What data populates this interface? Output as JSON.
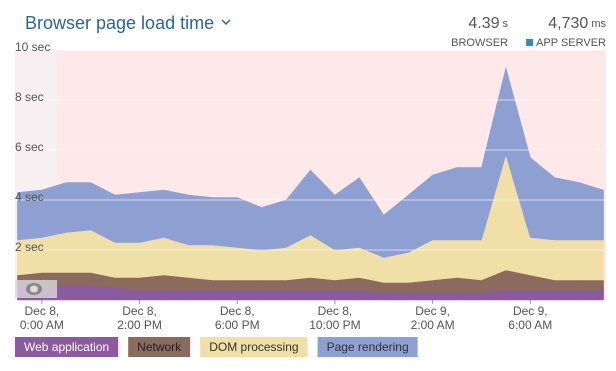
{
  "chart_data": {
    "type": "stacked-area",
    "title": "Browser page load time",
    "summary": [
      {
        "value": "4.39",
        "unit": "s",
        "label": "BROWSER"
      },
      {
        "value": "4,730",
        "unit": "ms",
        "label": "APP SERVER",
        "color": "#2f8fa8"
      }
    ],
    "x": [
      9,
      10,
      11,
      12,
      13,
      14,
      15,
      16,
      17,
      18,
      19,
      20,
      21,
      22,
      23,
      24,
      25,
      26,
      27,
      28,
      29,
      30,
      31,
      32,
      33
    ],
    "series": [
      {
        "name": "Web application",
        "color": "#8c5a9e",
        "values": [
          0.6,
          0.6,
          0.6,
          0.6,
          0.5,
          0.4,
          0.4,
          0.4,
          0.4,
          0.4,
          0.4,
          0.4,
          0.4,
          0.4,
          0.4,
          0.3,
          0.3,
          0.3,
          0.3,
          0.3,
          0.4,
          0.4,
          0.4,
          0.4,
          0.4
        ]
      },
      {
        "name": "Network",
        "color": "#8b6b5e",
        "values": [
          0.4,
          0.5,
          0.5,
          0.5,
          0.4,
          0.5,
          0.6,
          0.5,
          0.4,
          0.4,
          0.4,
          0.4,
          0.5,
          0.4,
          0.5,
          0.4,
          0.4,
          0.5,
          0.6,
          0.5,
          0.8,
          0.6,
          0.4,
          0.4,
          0.4
        ]
      },
      {
        "name": "DOM processing",
        "color": "#f0dfa6",
        "values": [
          1.4,
          1.4,
          1.6,
          1.7,
          1.4,
          1.4,
          1.5,
          1.3,
          1.4,
          1.3,
          1.2,
          1.3,
          1.7,
          1.2,
          1.2,
          1.0,
          1.2,
          1.6,
          1.5,
          1.6,
          4.6,
          1.5,
          1.6,
          1.6,
          1.6
        ]
      },
      {
        "name": "Page rendering",
        "color": "#8e9fd2",
        "values": [
          1.9,
          1.9,
          2.0,
          1.9,
          1.9,
          2.0,
          1.9,
          2.0,
          1.9,
          2.0,
          1.7,
          1.9,
          2.6,
          2.2,
          2.8,
          1.7,
          2.3,
          2.6,
          2.9,
          2.9,
          3.5,
          3.2,
          2.5,
          2.3,
          2.0
        ]
      }
    ],
    "xlim": [
      8.9,
      33.1
    ],
    "xticks": [
      {
        "value": 10,
        "label": "Dec 8,\n0:00 AM"
      },
      {
        "value": 14,
        "label": "Dec 8,\n2:00 PM"
      },
      {
        "value": 18,
        "label": "Dec 8,\n6:00 PM"
      },
      {
        "value": 22,
        "label": "Dec 8,\n10:00 PM"
      },
      {
        "value": 26,
        "label": "Dec 9,\n2:00 AM"
      },
      {
        "value": 30,
        "label": "Dec 9,\n6:00 AM"
      }
    ],
    "ylim": [
      0,
      10
    ],
    "yticks": [
      {
        "value": 2,
        "label": "2 sec"
      },
      {
        "value": 4,
        "label": "4 sec"
      },
      {
        "value": 6,
        "label": "6 sec"
      },
      {
        "value": 8,
        "label": "8 sec"
      },
      {
        "value": 10,
        "label": "10 sec"
      }
    ],
    "grid": true
  }
}
